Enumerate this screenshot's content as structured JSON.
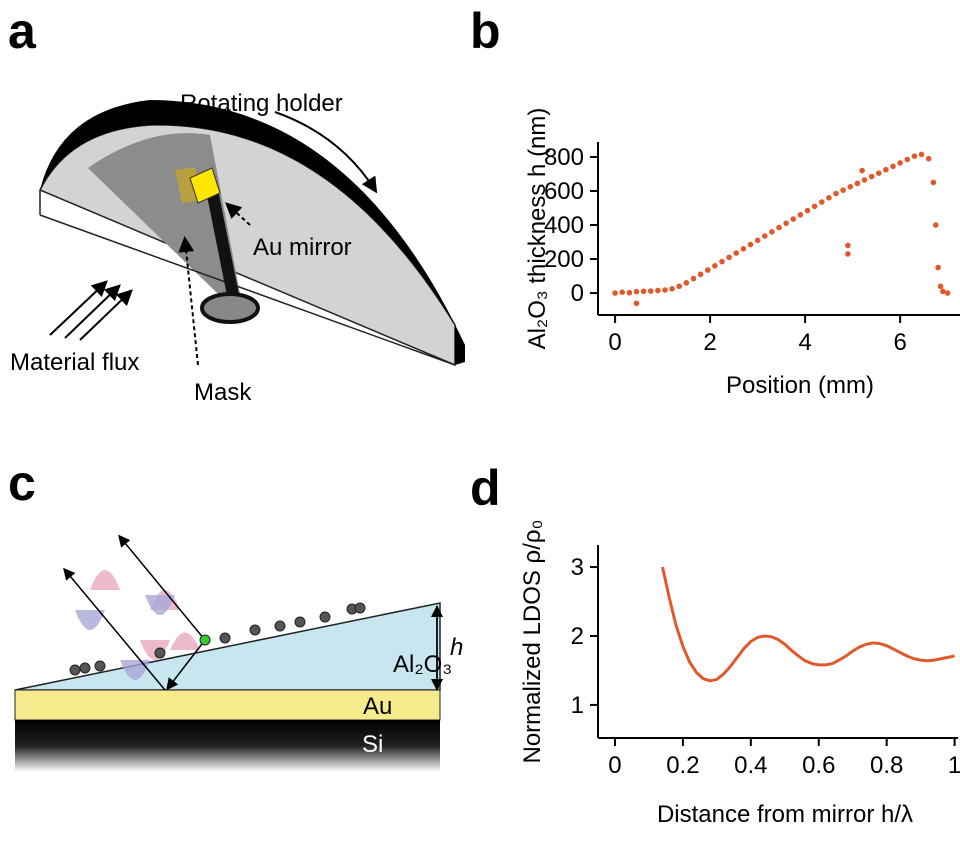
{
  "panels": [
    "a",
    "b",
    "c",
    "d"
  ],
  "diagram_a": {
    "annotations": [
      "Rotating holder",
      "Au mirror",
      "Material flux",
      "Mask"
    ]
  },
  "diagram_c": {
    "annotations": [
      "Al₂O₃",
      "Au",
      "Si",
      "h"
    ]
  },
  "chart_data": [
    {
      "type": "scatter",
      "xlabel": "Position (mm)",
      "ylabel": "Al₂O₃ thickness h (nm)",
      "color": "#e0592a",
      "x": [
        0,
        0.15,
        0.3,
        0.45,
        0.6,
        0.75,
        0.9,
        1.05,
        1.2,
        1.35,
        1.5,
        1.65,
        1.8,
        1.95,
        2.1,
        2.25,
        2.4,
        2.55,
        2.7,
        2.85,
        3.0,
        3.15,
        3.3,
        3.45,
        3.6,
        3.75,
        3.9,
        4.05,
        4.2,
        4.35,
        4.5,
        4.65,
        4.8,
        4.95,
        5.1,
        5.25,
        5.4,
        5.55,
        5.7,
        5.85,
        6.0,
        6.15,
        6.3,
        6.45,
        6.6,
        6.7,
        6.75,
        6.8,
        6.85,
        6.9,
        7.0,
        0.45,
        4.9,
        4.9,
        5.2
      ],
      "values": [
        0,
        5,
        2,
        8,
        10,
        12,
        15,
        18,
        25,
        40,
        60,
        85,
        110,
        135,
        160,
        185,
        210,
        235,
        260,
        285,
        310,
        335,
        360,
        385,
        410,
        435,
        460,
        485,
        510,
        535,
        560,
        585,
        605,
        625,
        645,
        665,
        685,
        705,
        725,
        745,
        765,
        785,
        805,
        815,
        790,
        650,
        400,
        150,
        40,
        10,
        0,
        -60,
        230,
        280,
        720
      ],
      "xlim": [
        -0.36,
        7.26
      ],
      "ylim": [
        -129,
        888
      ],
      "xticks": [
        0,
        2,
        4,
        6
      ],
      "yticks": [
        0,
        200,
        400,
        600,
        800
      ]
    },
    {
      "type": "line",
      "xlabel": "Distance from mirror h/λ",
      "ylabel": "Normalized LDOS  ρ/ρ₀",
      "color": "#e0592a",
      "x": [
        0.14,
        0.16,
        0.18,
        0.2,
        0.22,
        0.24,
        0.26,
        0.28,
        0.3,
        0.32,
        0.34,
        0.36,
        0.38,
        0.4,
        0.42,
        0.44,
        0.46,
        0.48,
        0.5,
        0.52,
        0.54,
        0.56,
        0.58,
        0.6,
        0.62,
        0.64,
        0.66,
        0.68,
        0.7,
        0.72,
        0.74,
        0.76,
        0.78,
        0.8,
        0.82,
        0.84,
        0.86,
        0.88,
        0.9,
        0.92,
        0.94,
        0.96,
        0.98,
        1.0
      ],
      "values": [
        3.0,
        2.55,
        2.15,
        1.85,
        1.62,
        1.47,
        1.38,
        1.35,
        1.37,
        1.45,
        1.56,
        1.69,
        1.82,
        1.92,
        1.98,
        2.0,
        1.99,
        1.95,
        1.88,
        1.79,
        1.71,
        1.64,
        1.6,
        1.58,
        1.58,
        1.6,
        1.65,
        1.71,
        1.78,
        1.84,
        1.88,
        1.9,
        1.89,
        1.86,
        1.81,
        1.76,
        1.71,
        1.67,
        1.65,
        1.64,
        1.65,
        1.67,
        1.69,
        1.71
      ],
      "xlim": [
        -0.05,
        1.01
      ],
      "ylim": [
        0.52,
        3.32
      ],
      "xticks": [
        0,
        0.2,
        0.4,
        0.6,
        0.8,
        1
      ],
      "yticks": [
        1,
        2,
        3
      ]
    }
  ]
}
